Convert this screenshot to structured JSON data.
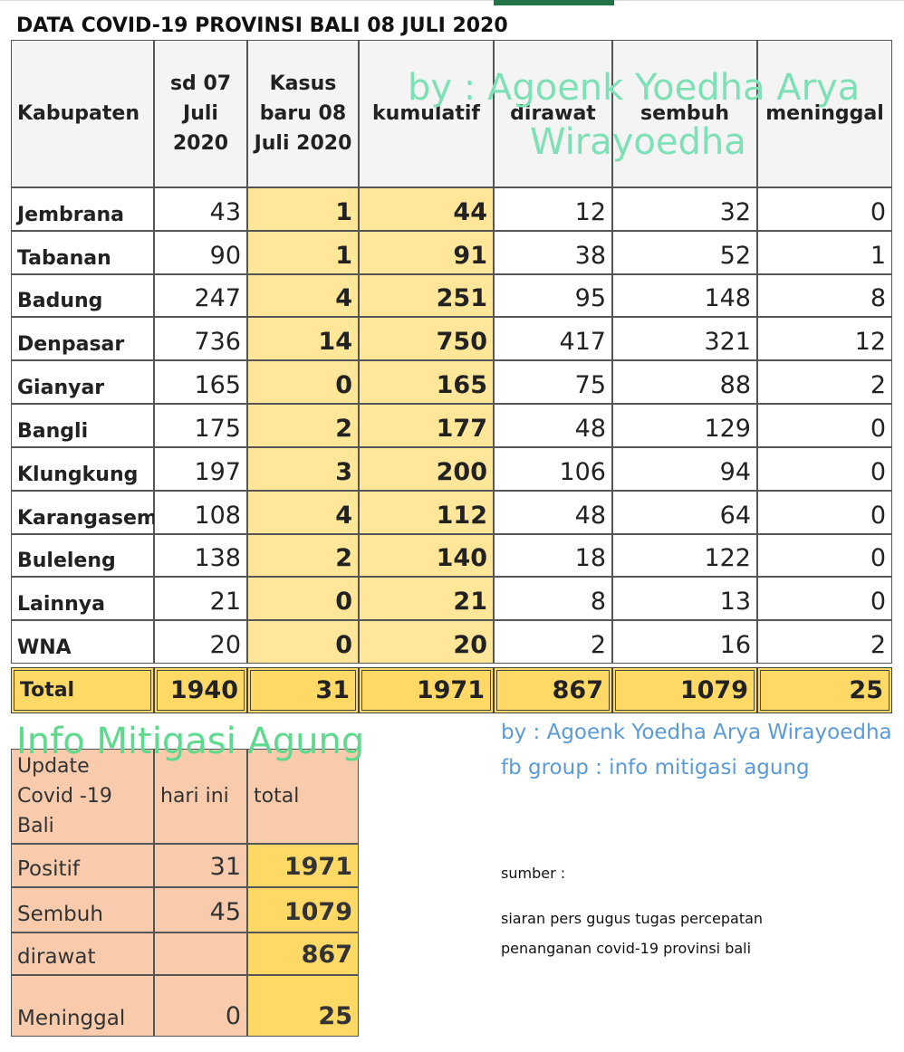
{
  "title": "DATA COVID-19 PROVINSI BALI 08 JULI 2020",
  "watermark": {
    "line1": "by : Agoenk Yoedha Arya",
    "line2": "Wirayoedha",
    "banner": "Info Mitigasi Agung"
  },
  "main_table": {
    "header": [
      [
        "Kabupaten"
      ],
      [
        "sd 07",
        "Juli",
        "2020"
      ],
      [
        "Kasus",
        "baru 08",
        "Juli 2020"
      ],
      [
        "kumulatif"
      ],
      [
        "dirawat"
      ],
      [
        "sembuh"
      ],
      [
        "meninggal"
      ]
    ],
    "rows": [
      [
        "Jembrana",
        43,
        1,
        44,
        12,
        32,
        0
      ],
      [
        "Tabanan",
        90,
        1,
        91,
        38,
        52,
        1
      ],
      [
        "Badung",
        247,
        4,
        251,
        95,
        148,
        8
      ],
      [
        "Denpasar",
        736,
        14,
        750,
        417,
        321,
        12
      ],
      [
        "Gianyar",
        165,
        0,
        165,
        75,
        88,
        2
      ],
      [
        "Bangli",
        175,
        2,
        177,
        48,
        129,
        0
      ],
      [
        "Klungkung",
        197,
        3,
        200,
        106,
        94,
        0
      ],
      [
        "Karangasem",
        108,
        4,
        112,
        48,
        64,
        0
      ],
      [
        "Buleleng",
        138,
        2,
        140,
        18,
        122,
        0
      ],
      [
        "Lainnya",
        21,
        0,
        21,
        8,
        13,
        0
      ],
      [
        "WNA",
        20,
        0,
        20,
        2,
        16,
        2
      ]
    ],
    "total": [
      "Total",
      1940,
      31,
      1971,
      867,
      1079,
      25
    ]
  },
  "summary_table": {
    "header": [
      [
        "Update",
        "Covid -19",
        "Bali"
      ],
      [
        "hari ini"
      ],
      [
        "total"
      ]
    ],
    "rows": [
      [
        "Positif",
        31,
        1971
      ],
      [
        "Sembuh",
        45,
        1079
      ],
      [
        "dirawat",
        null,
        867
      ],
      [
        "Meninggal",
        0,
        25
      ]
    ]
  },
  "notes": {
    "author": "by : Agoenk Yoedha Arya Wirayoedha",
    "group": "fb group : info mitigasi agung",
    "source_label": "sumber :",
    "source_line1": "siaran pers gugus tugas percepatan",
    "source_line2": "penanganan covid-19 provinsi bali"
  }
}
